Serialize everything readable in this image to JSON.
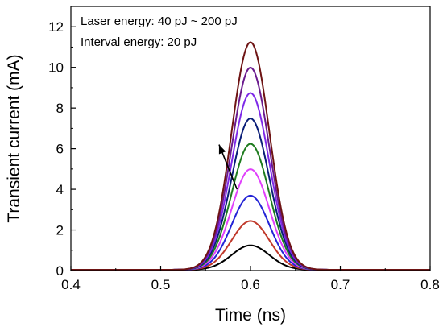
{
  "chart_data": {
    "type": "line",
    "title": "",
    "xlabel": "Time (ns)",
    "ylabel": "Transient current (mA)",
    "xlim": [
      0.4,
      0.8
    ],
    "ylim": [
      0,
      13
    ],
    "x_ticks": [
      0.4,
      0.5,
      0.6,
      0.7,
      0.8
    ],
    "x_tick_labels": [
      "0.4",
      "0.5",
      "0.6",
      "0.7",
      "0.8"
    ],
    "y_ticks": [
      0,
      2,
      4,
      6,
      8,
      10,
      12
    ],
    "y_tick_labels": [
      "0",
      "2",
      "4",
      "6",
      "8",
      "10",
      "12"
    ],
    "grid": false,
    "legend": "none",
    "annotations": [
      "Laser energy:  40 pJ ~ 200 pJ",
      "Interval energy: 20 pJ"
    ],
    "arrow": {
      "from": [
        0.585,
        4.0
      ],
      "to": [
        0.565,
        6.2
      ]
    },
    "peak_time": 0.6,
    "pulse_width_sigma": 0.021,
    "series": [
      {
        "peak": 1.2,
        "color": "#000000"
      },
      {
        "peak": 2.4,
        "color": "#c0392b"
      },
      {
        "peak": 3.65,
        "color": "#2424d6"
      },
      {
        "peak": 4.95,
        "color": "#e040fb"
      },
      {
        "peak": 6.2,
        "color": "#1e7b1e"
      },
      {
        "peak": 7.45,
        "color": "#0a1e78"
      },
      {
        "peak": 8.7,
        "color": "#7d28e8"
      },
      {
        "peak": 9.95,
        "color": "#6a1a8e"
      },
      {
        "peak": 11.2,
        "color": "#6e1414"
      }
    ]
  }
}
